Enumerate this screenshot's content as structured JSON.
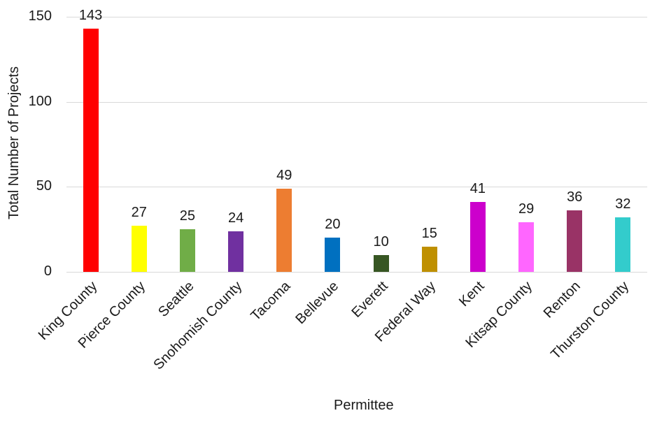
{
  "chart_data": {
    "type": "bar",
    "title": "",
    "xlabel": "Permittee",
    "ylabel": "Total Number of Projects",
    "ylim": [
      0,
      150
    ],
    "yticks": [
      0,
      50,
      100,
      150
    ],
    "grid": true,
    "legend": null,
    "data_labels": true,
    "categories": [
      "King County",
      "Pierce County",
      "Seattle",
      "Snohomish County",
      "Tacoma",
      "Bellevue",
      "Everett",
      "Federal Way",
      "Kent",
      "Kitsap County",
      "Renton",
      "Thurston County"
    ],
    "values": [
      143,
      27,
      25,
      24,
      49,
      20,
      10,
      15,
      41,
      29,
      36,
      32
    ],
    "colors": [
      "#ff0000",
      "#ffff00",
      "#70ad47",
      "#7030a0",
      "#ed7d31",
      "#0070c0",
      "#375623",
      "#bf9000",
      "#cc00cc",
      "#ff66ff",
      "#993366",
      "#33cccc"
    ]
  }
}
